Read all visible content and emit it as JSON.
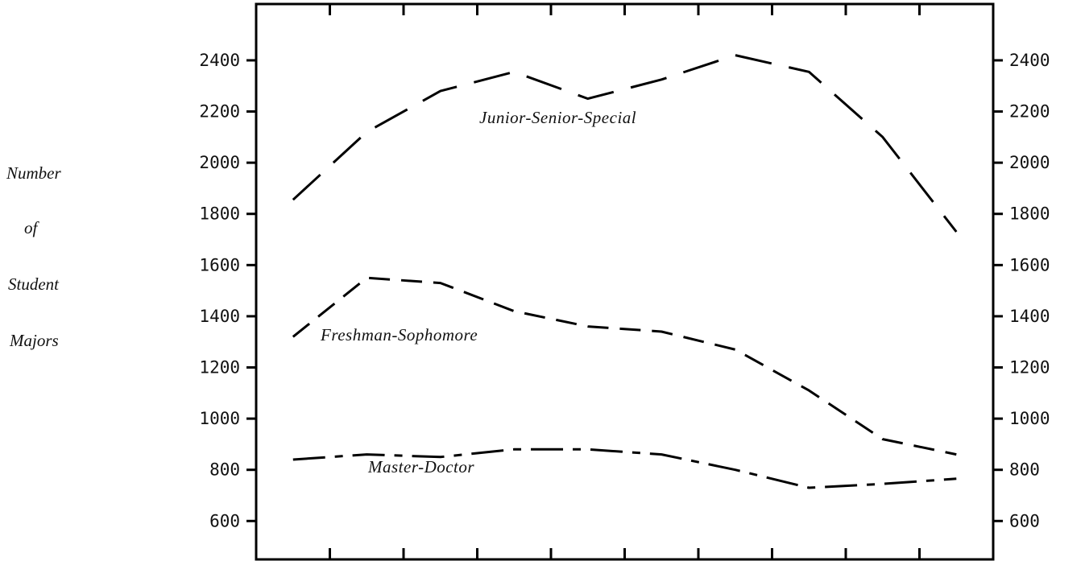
{
  "chart_data": {
    "type": "line",
    "ylabel": [
      "Number",
      "of",
      "Student",
      "Majors"
    ],
    "ylim": [
      450,
      2620
    ],
    "y_ticks": [
      600,
      800,
      1000,
      1200,
      1400,
      1600,
      1800,
      2000,
      2200,
      2400
    ],
    "y_tick_labels": [
      "600",
      "800",
      "1000",
      "1200",
      "1400",
      "1600",
      "1800",
      "2000",
      "2200",
      "2400"
    ],
    "x": [
      1,
      2,
      3,
      4,
      5,
      6,
      7,
      8,
      9,
      10
    ],
    "xlim": [
      0.5,
      10.5
    ],
    "x_tick_count": 9,
    "grid": false,
    "right_axis_mirrors_left": true,
    "series": [
      {
        "name": "Junior-Senior-Special",
        "dash": "long",
        "values": [
          1855,
          2120,
          2280,
          2355,
          2250,
          2325,
          2420,
          2355,
          2100,
          1730
        ]
      },
      {
        "name": "Freshman-Sophomore",
        "dash": "medium",
        "values": [
          1320,
          1550,
          1530,
          1420,
          1360,
          1340,
          1270,
          1110,
          920,
          860
        ]
      },
      {
        "name": "Master-Doctor",
        "dash": "dash-dot",
        "values": [
          840,
          860,
          850,
          880,
          880,
          860,
          800,
          730,
          745,
          765
        ]
      }
    ]
  }
}
